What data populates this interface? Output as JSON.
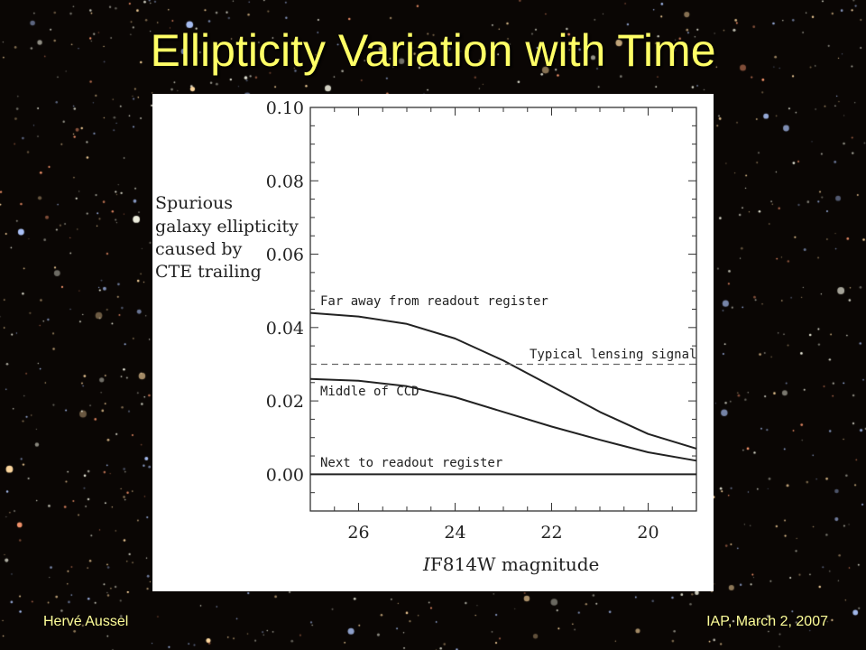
{
  "slide": {
    "title": "Ellipticity Variation with Time",
    "footer_left": "Hervé Aussel",
    "footer_right": "IAP, March 2, 2007",
    "colors": {
      "title": "#ffff66",
      "background": "#0a0604"
    }
  },
  "chart_data": {
    "type": "line",
    "title": "",
    "xlabel": "IF814W magnitude",
    "ylabel": [
      "Spurious",
      "galaxy ellipticity",
      "caused by",
      "CTE trailing"
    ],
    "xlim": [
      27,
      19
    ],
    "ylim": [
      -0.01,
      0.1
    ],
    "xticks": [
      26,
      24,
      22,
      20
    ],
    "xtick_labels": [
      "26",
      "24",
      "22",
      "20"
    ],
    "yticks": [
      0.1,
      0.08,
      0.06,
      0.04,
      0.02,
      0.0
    ],
    "ytick_labels": [
      "0.10",
      "0.08",
      "0.06",
      "0.04",
      "0.02",
      "0.00"
    ],
    "grid": false,
    "x": [
      27,
      26,
      25,
      24,
      23,
      22,
      21,
      20,
      19
    ],
    "series": [
      {
        "name": "Far away from readout register",
        "style": "solid",
        "values": [
          0.044,
          0.043,
          0.041,
          0.037,
          0.031,
          0.024,
          0.017,
          0.011,
          0.007
        ]
      },
      {
        "name": "Middle of CCD",
        "style": "solid",
        "values": [
          0.026,
          0.0255,
          0.024,
          0.021,
          0.017,
          0.013,
          0.0094,
          0.006,
          0.0037
        ]
      },
      {
        "name": "Next to readout register",
        "style": "solid",
        "values": [
          0,
          0,
          0,
          0,
          0,
          0,
          0,
          0,
          0
        ]
      },
      {
        "name": "Typical lensing signal",
        "style": "dashed",
        "values": [
          0.03,
          0.03,
          0.03,
          0.03,
          0.03,
          0.03,
          0.03,
          0.03,
          0.03
        ]
      }
    ]
  }
}
